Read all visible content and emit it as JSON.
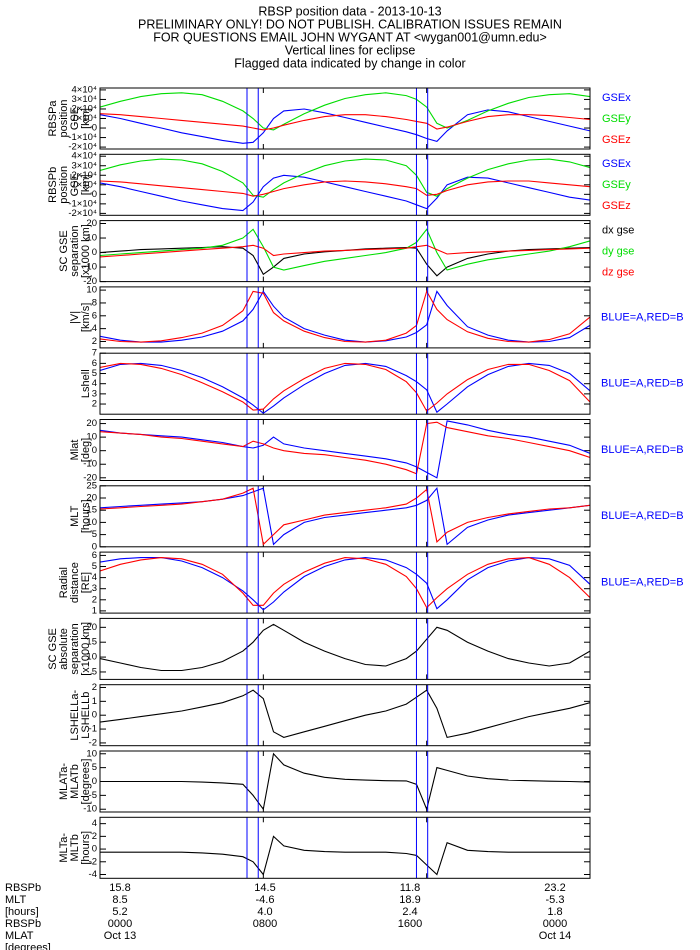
{
  "title_lines": [
    "RBSP position data - 2013-10-13",
    "PRELIMINARY ONLY! DO NOT PUBLISH. CALIBRATION ISSUES REMAIN",
    "FOR QUESTIONS EMAIL JOHN WYGANT AT <wygan001@umn.edu>",
    "Vertical lines for eclipse",
    "Flagged data indicated by change in color"
  ],
  "x": [
    0,
    1,
    2,
    3,
    4,
    5,
    6,
    7,
    7.5,
    8,
    8.5,
    9,
    10,
    11,
    12,
    13,
    14,
    15,
    15.5,
    16,
    16.5,
    17,
    18,
    19,
    20,
    21,
    22,
    23,
    24
  ],
  "xlim": [
    0,
    24
  ],
  "xticks": [
    0,
    8,
    16,
    24
  ],
  "eclipse_lines": [
    7.2,
    7.75,
    15.5,
    16.05
  ],
  "eclipse_color": "#0000ff",
  "chart_data": [
    {
      "type": "line",
      "ylabel": [
        "RBSPa",
        "position",
        "GSE",
        "[km]"
      ],
      "ylim": [
        -22000,
        42000
      ],
      "yticks": [
        {
          "value": -20000,
          "label": "-2×10⁴"
        },
        {
          "value": -10000,
          "label": "-1×10⁴"
        },
        0,
        {
          "value": 10000,
          "label": "1×10⁴"
        },
        {
          "value": 20000,
          "label": "2×10⁴"
        },
        {
          "value": 30000,
          "label": "3×10⁴"
        },
        {
          "value": 40000,
          "label": "4×10⁴"
        }
      ],
      "series": [
        {
          "name": "GSEx",
          "color": "#0000ff",
          "values": [
            14000,
            10000,
            5000,
            0,
            -5000,
            -9000,
            -13000,
            -16000,
            -15000,
            -5000,
            10000,
            18000,
            20000,
            16000,
            11000,
            6000,
            1000,
            -4000,
            -7000,
            -11000,
            -14000,
            -3000,
            14000,
            19000,
            17000,
            12000,
            7000,
            2000,
            -3000
          ]
        },
        {
          "name": "GSEy",
          "color": "#00dd00",
          "values": [
            22000,
            28000,
            33000,
            36000,
            37000,
            35000,
            28000,
            18000,
            10000,
            0,
            -2000,
            4000,
            15000,
            24000,
            31000,
            35000,
            37000,
            34000,
            30000,
            22000,
            5000,
            0,
            8000,
            18000,
            26000,
            32000,
            35000,
            36000,
            33000
          ]
        },
        {
          "name": "GSEz",
          "color": "#ff0000",
          "values": [
            15000,
            14000,
            12000,
            10000,
            8000,
            6000,
            4000,
            2000,
            0,
            -2000,
            0,
            3000,
            8000,
            12000,
            14000,
            14000,
            12000,
            9000,
            7000,
            5000,
            -1000,
            1000,
            7000,
            12000,
            14000,
            14000,
            13000,
            11000,
            9000
          ]
        }
      ]
    },
    {
      "type": "line",
      "ylabel": [
        "RBSPb",
        "position",
        "GSE",
        "[km]"
      ],
      "ylim": [
        -22000,
        42000
      ],
      "yticks": [
        {
          "value": -20000,
          "label": "-2×10⁴"
        },
        {
          "value": -10000,
          "label": "-1×10⁴"
        },
        0,
        {
          "value": 10000,
          "label": "1×10⁴"
        },
        {
          "value": 20000,
          "label": "2×10⁴"
        },
        {
          "value": 30000,
          "label": "3×10⁴"
        },
        {
          "value": 40000,
          "label": "4×10⁴"
        }
      ],
      "series": [
        {
          "name": "GSEx",
          "color": "#0000ff",
          "values": [
            12000,
            8000,
            3000,
            -2000,
            -7000,
            -11000,
            -15000,
            -17000,
            -8000,
            8000,
            17000,
            20000,
            18000,
            13000,
            8000,
            3000,
            -2000,
            -7000,
            -11000,
            -15000,
            -4000,
            10000,
            18000,
            17000,
            12000,
            7000,
            2000,
            -3000,
            -6000
          ]
        },
        {
          "name": "GSEy",
          "color": "#00dd00",
          "values": [
            25000,
            31000,
            35000,
            37000,
            36000,
            32000,
            24000,
            12000,
            -1000,
            -3000,
            5000,
            12000,
            22000,
            30000,
            35000,
            37000,
            36000,
            30000,
            20000,
            2000,
            -2000,
            6000,
            17000,
            26000,
            32000,
            36000,
            37000,
            34000,
            28000
          ]
        },
        {
          "name": "GSEz",
          "color": "#ff0000",
          "values": [
            14000,
            13000,
            11000,
            9000,
            7000,
            5000,
            3000,
            1000,
            -2000,
            0,
            3000,
            6000,
            10000,
            13000,
            14000,
            13000,
            11000,
            8000,
            6000,
            -1000,
            0,
            4000,
            10000,
            13000,
            14000,
            14000,
            12000,
            10000,
            8000
          ]
        }
      ]
    },
    {
      "type": "line",
      "ylabel": [
        "SC GSE",
        "separation",
        "[x1000 km]"
      ],
      "ylim": [
        -20,
        22
      ],
      "yticks": [
        -20,
        -10,
        0,
        10,
        20
      ],
      "series": [
        {
          "name": "dx gse",
          "color": "#000000",
          "values": [
            0,
            1,
            2,
            2.5,
            3,
            3.5,
            4,
            3,
            -2,
            -15,
            -10,
            -4,
            -1,
            0.5,
            1.5,
            2.5,
            3,
            3.5,
            3,
            -8,
            -16,
            -10,
            -4,
            -1,
            1,
            2,
            2.5,
            3,
            3.5
          ]
        },
        {
          "name": "dy gse",
          "color": "#00dd00",
          "values": [
            -2,
            -1,
            0,
            1,
            2,
            3,
            5,
            10,
            16,
            4,
            -10,
            -12,
            -9,
            -6,
            -4,
            -2,
            0,
            3,
            7,
            16,
            0,
            -12,
            -8,
            -5,
            -3,
            -1,
            1,
            4,
            8
          ]
        },
        {
          "name": "dz gse",
          "color": "#ff0000",
          "values": [
            -3,
            -2,
            -1,
            0,
            1,
            2,
            3,
            4,
            5,
            3,
            -2,
            -1,
            0,
            1,
            1.5,
            2,
            2.5,
            3,
            4,
            5,
            2,
            -1,
            0,
            0.5,
            1,
            1.5,
            2,
            2.5,
            3
          ]
        }
      ]
    },
    {
      "type": "line",
      "ylabel": [
        "|V|",
        "[km/s]"
      ],
      "ylim": [
        1,
        10.5
      ],
      "yticks": [
        2,
        4,
        6,
        8,
        10
      ],
      "annotation": "BLUE=A,RED=B",
      "annotation_color": "#0000ff",
      "series": [
        {
          "color": "#0000ff",
          "values": [
            2.8,
            2.2,
            1.9,
            1.9,
            2.2,
            2.7,
            3.6,
            5.2,
            7,
            9.8,
            7.5,
            5.8,
            4,
            3,
            2.2,
            1.9,
            2.1,
            2.7,
            3.4,
            4.6,
            9.8,
            7.6,
            4.3,
            3,
            2.2,
            1.9,
            2,
            2.6,
            4.5
          ]
        },
        {
          "color": "#ff0000",
          "values": [
            2.4,
            2,
            1.9,
            2.1,
            2.6,
            3.3,
            4.5,
            6.8,
            9.8,
            9.5,
            6.5,
            5.2,
            3.6,
            2.6,
            2,
            1.9,
            2.2,
            3.3,
            4.5,
            9.8,
            7,
            5.4,
            3.5,
            2.5,
            2,
            1.9,
            2.3,
            3.2,
            5.8
          ]
        }
      ]
    },
    {
      "type": "line",
      "ylabel": [
        "Lshell"
      ],
      "ylim": [
        1,
        7
      ],
      "yticks": [
        2,
        3,
        4,
        5,
        6,
        7
      ],
      "annotation": "BLUE=A,RED=B",
      "annotation_color": "#0000ff",
      "series": [
        {
          "color": "#0000ff",
          "values": [
            5.3,
            5.9,
            6,
            5.8,
            5.3,
            4.6,
            3.7,
            2.6,
            1.9,
            1.1,
            1.8,
            2.6,
            3.9,
            5,
            5.8,
            6,
            5.7,
            4.8,
            4.2,
            3.4,
            1.2,
            2,
            3.7,
            4.9,
            5.7,
            6,
            5.8,
            5,
            3.3
          ]
        },
        {
          "color": "#ff0000",
          "values": [
            5.6,
            6,
            5.9,
            5.5,
            4.9,
            4.1,
            3.2,
            2.2,
            1.4,
            1.5,
            2.5,
            3.3,
            4.5,
            5.5,
            6,
            5.9,
            5.4,
            4.2,
            3.1,
            1.3,
            2.1,
            3,
            4.4,
            5.4,
            5.9,
            5.9,
            5.3,
            4.3,
            2.2
          ]
        }
      ]
    },
    {
      "type": "line",
      "ylabel": [
        "Mlat",
        "[deg]"
      ],
      "ylim": [
        -22,
        23
      ],
      "yticks": [
        -20,
        -10,
        0,
        10,
        20
      ],
      "annotation": "BLUE=A,RED=B",
      "annotation_color": "#0000ff",
      "series": [
        {
          "color": "#0000ff",
          "values": [
            15,
            13,
            12,
            11,
            10,
            8,
            6,
            3,
            2,
            4,
            10,
            5,
            2,
            0,
            -2,
            -4,
            -6,
            -9,
            -12,
            -16,
            -20,
            22,
            19,
            15,
            12,
            10,
            7,
            4,
            -2
          ]
        },
        {
          "color": "#ff0000",
          "values": [
            14,
            13,
            12,
            10,
            9,
            7,
            5,
            3,
            7,
            5,
            2,
            0,
            -2,
            -3,
            -5,
            -7,
            -10,
            -14,
            -17,
            20,
            21,
            17,
            14,
            11,
            9,
            6,
            3,
            0,
            -5
          ]
        }
      ]
    },
    {
      "type": "line",
      "ylabel": [
        "MLT",
        "[hours]"
      ],
      "ylim": [
        0,
        25
      ],
      "yticks": [
        0,
        5,
        10,
        15,
        20,
        25
      ],
      "annotation": "BLUE=A,RED=B",
      "annotation_color": "#0000ff",
      "series": [
        {
          "color": "#0000ff",
          "values": [
            16,
            16.5,
            17,
            17.5,
            18,
            18.5,
            19.5,
            21,
            22.5,
            24,
            1,
            5,
            10,
            12,
            13,
            14,
            15,
            16,
            17,
            19,
            24,
            1,
            8,
            11,
            13,
            14,
            15,
            16,
            17
          ]
        },
        {
          "color": "#ff0000",
          "values": [
            15.5,
            16,
            16.5,
            17,
            17.5,
            18.5,
            19.5,
            22,
            24,
            1,
            5,
            9,
            11,
            13,
            14,
            15,
            16,
            17.5,
            20,
            23.5,
            2,
            6,
            10,
            12,
            13.5,
            14.5,
            15.5,
            16,
            17
          ]
        }
      ]
    },
    {
      "type": "line",
      "ylabel": [
        "Radial",
        "distance",
        "[RE]"
      ],
      "ylim": [
        0.8,
        6.3
      ],
      "yticks": [
        1,
        2,
        3,
        4,
        5,
        6
      ],
      "annotation": "BLUE=A,RED=B",
      "annotation_color": "#0000ff",
      "series": [
        {
          "color": "#0000ff",
          "values": [
            5.4,
            5.7,
            5.8,
            5.8,
            5.5,
            4.9,
            4,
            2.8,
            2,
            1.1,
            1.8,
            2.7,
            4.1,
            5,
            5.6,
            5.8,
            5.6,
            4.9,
            4.3,
            3.5,
            1.2,
            2,
            3.8,
            4.9,
            5.5,
            5.8,
            5.7,
            5.1,
            3.4
          ]
        },
        {
          "color": "#ff0000",
          "values": [
            4.6,
            5.2,
            5.6,
            5.8,
            5.7,
            5.2,
            4.3,
            2.6,
            1.5,
            1.5,
            2.6,
            3.4,
            4.5,
            5.3,
            5.8,
            5.7,
            5.2,
            4.1,
            3,
            1.3,
            2.2,
            3,
            4.3,
            5.2,
            5.7,
            5.8,
            5.2,
            4,
            2.2
          ]
        }
      ]
    },
    {
      "type": "line",
      "ylabel": [
        "SC GSE",
        "absolute",
        "separation",
        "[x1000 km]"
      ],
      "ylim": [
        2.5,
        23
      ],
      "yticks": [
        5,
        10,
        15,
        20
      ],
      "series": [
        {
          "color": "#000000",
          "values": [
            9.5,
            8,
            6.5,
            5.5,
            5.5,
            6.5,
            8.5,
            12,
            15,
            19,
            21,
            19,
            15,
            12,
            9.5,
            7.5,
            7,
            9.5,
            12,
            16,
            20,
            19,
            15,
            12,
            9.5,
            8,
            7,
            8,
            12
          ]
        }
      ]
    },
    {
      "type": "line",
      "ylabel": [
        "LSHELLa-",
        "LSHELLb"
      ],
      "ylim": [
        -2.2,
        2.2
      ],
      "yticks": [
        -2,
        -1,
        0,
        1,
        2
      ],
      "series": [
        {
          "color": "#000000",
          "values": [
            -0.5,
            -0.3,
            -0.1,
            0.1,
            0.3,
            0.6,
            0.9,
            1.4,
            1.8,
            1.2,
            -1.2,
            -1.6,
            -1.2,
            -0.8,
            -0.4,
            0,
            0.3,
            0.8,
            1.3,
            1.8,
            0.5,
            -1.6,
            -1.3,
            -0.9,
            -0.5,
            -0.1,
            0.2,
            0.5,
            0.9
          ]
        }
      ]
    },
    {
      "type": "line",
      "ylabel": [
        "MLATa-",
        "MLATb",
        "[degrees]"
      ],
      "ylim": [
        -11,
        11
      ],
      "yticks": [
        -10,
        -5,
        0,
        5,
        10
      ],
      "series": [
        {
          "color": "#000000",
          "values": [
            0,
            0,
            0,
            0,
            0,
            -0.2,
            -0.5,
            -1,
            -5,
            -10,
            10,
            6,
            3,
            1.5,
            0.8,
            0.5,
            0.3,
            0.2,
            -1,
            -10,
            5,
            4,
            2,
            1,
            0.5,
            0.3,
            0.1,
            0,
            -0.2
          ]
        }
      ]
    },
    {
      "type": "line",
      "ylabel": [
        "MLTa-",
        "MLTb",
        "[hours]"
      ],
      "ylim": [
        -4.6,
        5
      ],
      "yticks": [
        -4,
        -2,
        0,
        2,
        4
      ],
      "series": [
        {
          "color": "#000000",
          "values": [
            -0.5,
            -0.5,
            -0.5,
            -0.5,
            -0.5,
            -0.6,
            -0.8,
            -1.2,
            -2,
            -4,
            2,
            0.5,
            -0.2,
            -0.4,
            -0.5,
            -0.5,
            -0.5,
            -0.7,
            -1,
            -2.5,
            -4,
            1,
            -0.2,
            -0.4,
            -0.5,
            -0.5,
            -0.5,
            -0.5,
            -0.5
          ]
        }
      ]
    }
  ],
  "footer": {
    "labels": [
      "RBSPb",
      "MLT",
      "[hours]",
      "RBSPb",
      "MLAT",
      "[degrees]"
    ],
    "columns": [
      [
        "15.8",
        "8.5",
        "5.2",
        "0000",
        "Oct 13"
      ],
      [
        "14.5",
        "-4.6",
        "4.0",
        "0800"
      ],
      [
        "11.8",
        "18.9",
        "2.4",
        "1600"
      ],
      [
        "23.2",
        "-5.3",
        "1.8",
        "0000",
        "Oct 14"
      ]
    ]
  }
}
